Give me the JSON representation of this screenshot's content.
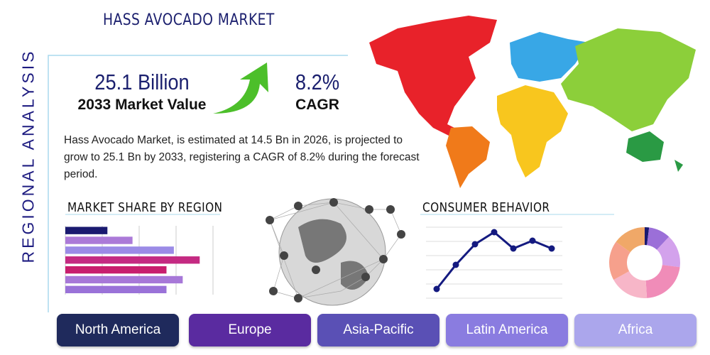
{
  "header": {
    "title": "HASS AVOCADO MARKET"
  },
  "side_label": "REGIONAL ANALYSIS",
  "stats": [
    {
      "value": "25.1 Billion",
      "label": "2033 Market Value"
    },
    {
      "value": "8.2%",
      "label": "CAGR"
    }
  ],
  "description": "Hass Avocado Market, is estimated at 14.5 Bn in 2026, is projected to grow to 25.1 Bn by 2033, registering a CAGR of 8.2% during the forecast period.",
  "chart_data": [
    {
      "type": "hbar",
      "title": "MARKET SHARE BY REGION",
      "categories": [
        null,
        null,
        null,
        null,
        null,
        null,
        null
      ],
      "values": [
        57,
        91,
        147,
        182,
        137,
        159,
        137
      ],
      "colors": [
        "#1a1a70",
        "#ab7ad8",
        "#9b8be6",
        "#c42a82",
        "#c81e6e",
        "#a778d8",
        "#9a72d8"
      ],
      "xlim": [
        0,
        200
      ],
      "xticks": [
        0,
        50,
        100,
        150,
        200
      ],
      "grid": true
    },
    {
      "type": "line",
      "title": "CONSUMER BEHAVIOR",
      "categories": [
        null,
        null,
        null,
        null,
        null,
        null,
        null
      ],
      "values": [
        13,
        47,
        76,
        93,
        70,
        81,
        70
      ],
      "color": "#141a80",
      "ylim": [
        0,
        100
      ],
      "yticks": [
        0,
        20,
        40,
        60,
        80,
        100
      ],
      "grid": true
    },
    {
      "type": "donut",
      "categories": [
        null,
        null,
        null,
        null,
        null,
        null,
        null
      ],
      "values": [
        2,
        10,
        15,
        22,
        18,
        18,
        15
      ],
      "colors": [
        "#1a1a70",
        "#9b6fd8",
        "#d3a2ec",
        "#f08cb8",
        "#f7b6c8",
        "#f6a08c",
        "#f0a868"
      ]
    }
  ],
  "regions": [
    "North America",
    "Europe",
    "Asia-Pacific",
    "Latin America",
    "Africa"
  ]
}
